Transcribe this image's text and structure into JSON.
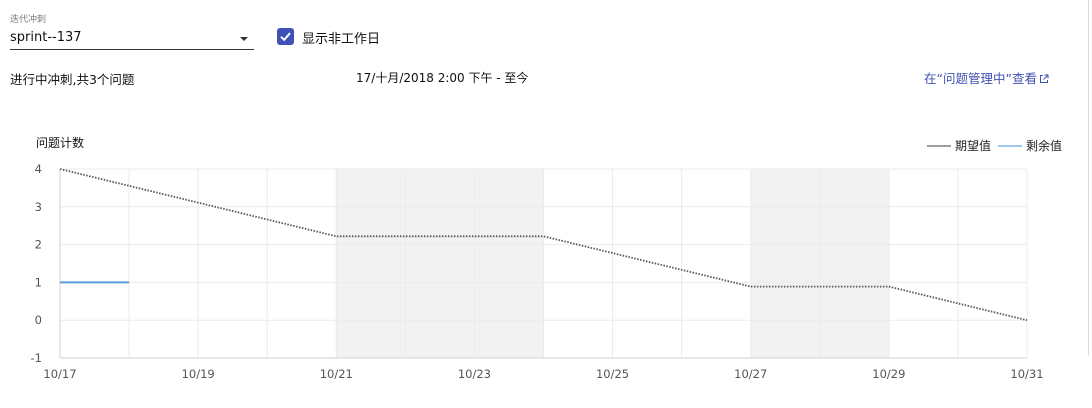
{
  "sprint": {
    "label": "迭代冲刺",
    "value": "sprint--137"
  },
  "show_nonworking": {
    "label": "显示非工作日",
    "checked": true
  },
  "summary": "进行中冲刺,共3个问题",
  "date_range": "17/十月/2018 2:00 下午 - 至今",
  "issue_link": "在“问题管理中”查看",
  "chart_data": {
    "type": "line",
    "ylabel": "问题计数",
    "ylim": [
      -1,
      4
    ],
    "y_ticks": [
      "-1",
      "0",
      "1",
      "2",
      "3",
      "4"
    ],
    "x_ticks": [
      "10/17",
      "10/19",
      "10/21",
      "10/23",
      "10/25",
      "10/27",
      "10/29",
      "10/31"
    ],
    "grid": true,
    "legend_position": "top-right",
    "non_working_periods": [
      [
        "10/21",
        "10/24"
      ],
      [
        "10/27",
        "10/29"
      ]
    ],
    "series": [
      {
        "name": "期望值",
        "color": "#555555",
        "style": "dotted",
        "points": [
          {
            "x": "10/17",
            "y": 4
          },
          {
            "x": "10/21",
            "y": 2.22
          },
          {
            "x": "10/24",
            "y": 2.22
          },
          {
            "x": "10/27",
            "y": 0.89
          },
          {
            "x": "10/29",
            "y": 0.89
          },
          {
            "x": "10/31",
            "y": 0
          }
        ]
      },
      {
        "name": "剩余值",
        "color": "#5b9bd5",
        "style": "solid",
        "points": [
          {
            "x": "10/17",
            "y": 1
          },
          {
            "x": "10/18",
            "y": 1
          }
        ]
      }
    ]
  }
}
